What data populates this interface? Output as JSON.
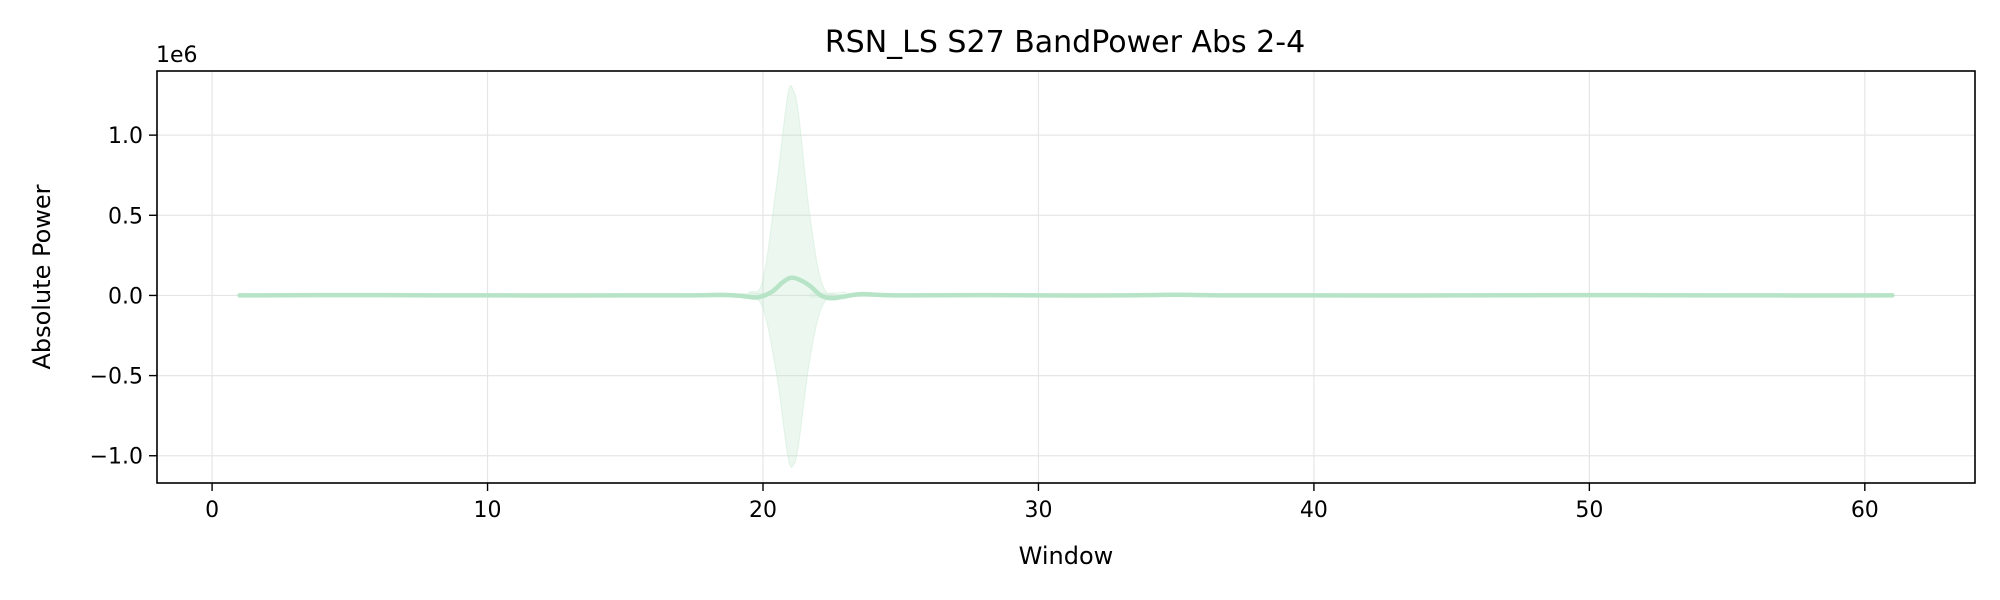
{
  "chart_data": {
    "type": "line",
    "title": "RSN_LS S27 BandPower Abs 2-4",
    "xlabel": "Window",
    "ylabel": "Absolute Power",
    "y_offset_label": "1e6",
    "xlim": [
      -2,
      64
    ],
    "ylim": [
      -1.17,
      1.4
    ],
    "x_ticks": [
      0,
      10,
      20,
      30,
      40,
      50,
      60
    ],
    "x_tick_labels": [
      "0",
      "10",
      "20",
      "30",
      "40",
      "50",
      "60"
    ],
    "y_ticks": [
      -1.0,
      -0.5,
      0.0,
      0.5,
      1.0
    ],
    "y_tick_labels": [
      "−1.0",
      "−0.5",
      "0.0",
      "0.5",
      "1.0"
    ],
    "grid": true,
    "line_color": "#b7e4c7",
    "band_color": "#b7e4c7",
    "series": [
      {
        "x": [
          1,
          5,
          10,
          15,
          17,
          18,
          18.7,
          19.3,
          19.8,
          20.3,
          20.7,
          21,
          21.3,
          21.7,
          22.1,
          22.5,
          23,
          23.5,
          24,
          25,
          28,
          30,
          33,
          35,
          37,
          40,
          45,
          50,
          55,
          61
        ],
        "y": [
          0,
          0.002,
          0,
          0,
          0,
          0.002,
          0.003,
          -0.005,
          -0.012,
          0.02,
          0.08,
          0.11,
          0.1,
          0.06,
          0.0,
          -0.018,
          -0.005,
          0.008,
          0.005,
          0,
          0.002,
          0,
          0,
          0.004,
          0,
          0,
          0,
          0.002,
          0,
          0
        ]
      }
    ],
    "band": {
      "x": [
        1,
        18.5,
        19.5,
        20,
        20.5,
        20.9,
        21.1,
        21.3,
        21.7,
        22.2,
        23,
        25,
        61
      ],
      "upper": [
        0.002,
        0.01,
        0.02,
        0.1,
        0.7,
        1.25,
        1.28,
        1.12,
        0.5,
        0.05,
        0.02,
        0.005,
        0.002
      ],
      "lower": [
        -0.002,
        -0.01,
        -0.02,
        -0.08,
        -0.5,
        -1.0,
        -1.06,
        -0.92,
        -0.4,
        -0.05,
        -0.02,
        -0.005,
        -0.002
      ]
    }
  }
}
